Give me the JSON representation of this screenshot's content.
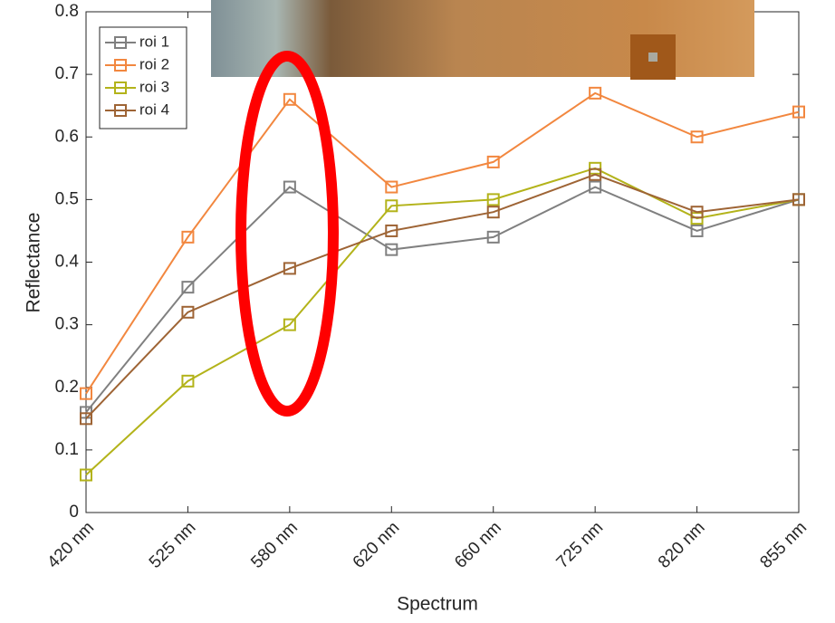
{
  "chart_data": {
    "type": "line",
    "xlabel": "Spectrum",
    "ylabel": "Reflectance",
    "categories": [
      "420 nm",
      "525 nm",
      "580 nm",
      "620 nm",
      "660 nm",
      "725 nm",
      "820 nm",
      "855 nm"
    ],
    "series": [
      {
        "name": "roi 1",
        "color": "#808080",
        "values": [
          0.16,
          0.36,
          0.52,
          0.42,
          0.44,
          0.52,
          0.45,
          0.5
        ]
      },
      {
        "name": "roi 2",
        "color": "#f2873f",
        "values": [
          0.19,
          0.44,
          0.66,
          0.52,
          0.56,
          0.67,
          0.6,
          0.64
        ]
      },
      {
        "name": "roi 3",
        "color": "#b3b31a",
        "values": [
          0.06,
          0.21,
          0.3,
          0.49,
          0.5,
          0.55,
          0.47,
          0.5
        ]
      },
      {
        "name": "roi 4",
        "color": "#9e6435",
        "values": [
          0.15,
          0.32,
          0.39,
          0.45,
          0.48,
          0.54,
          0.48,
          0.5
        ]
      }
    ],
    "ylim": [
      0,
      0.8
    ],
    "yticks": [
      0,
      0.1,
      0.2,
      0.3,
      0.4,
      0.5,
      0.6,
      0.7,
      0.8
    ],
    "grid": false,
    "legend": "upper-left"
  }
}
